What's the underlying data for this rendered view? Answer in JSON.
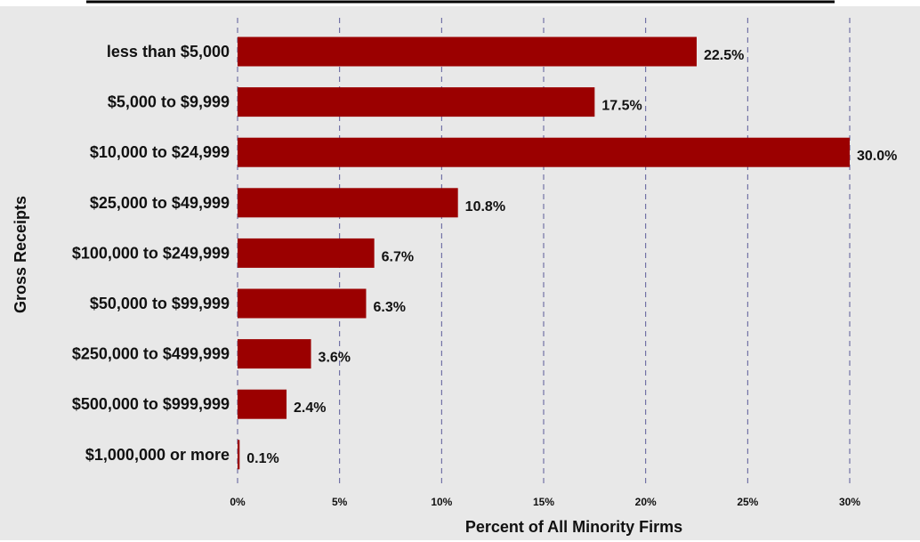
{
  "chart_data": {
    "type": "bar",
    "orientation": "horizontal",
    "title": "",
    "xlabel": "Percent of All Minority Firms",
    "ylabel": "Gross Receipts",
    "categories": [
      "less than $5,000",
      "$5,000 to $9,999",
      "$10,000 to $24,999",
      "$25,000 to $49,999",
      "$100,000 to $249,999",
      "$50,000 to $99,999",
      "$250,000 to $499,999",
      "$500,000 to $999,999",
      "$1,000,000 or more"
    ],
    "values": [
      22.5,
      17.5,
      30.0,
      10.8,
      6.7,
      6.3,
      3.6,
      2.4,
      0.1
    ],
    "value_labels": [
      "22.5%",
      "17.5%",
      "30.0%",
      "10.8%",
      "6.7%",
      "6.3%",
      "3.6%",
      "2.4%",
      "0.1%"
    ],
    "xlim": [
      0,
      30
    ],
    "xticks": [
      0,
      5,
      10,
      15,
      20,
      25,
      30
    ],
    "xtick_labels": [
      "0%",
      "5%",
      "10%",
      "15%",
      "20%",
      "25%",
      "30%"
    ],
    "grid": "vertical dashed",
    "legend": "none",
    "colors": {
      "bar": "#9b0000",
      "plot_background": "#e8e8e8",
      "grid": "#5a5a99",
      "title_rule": "#000000"
    }
  }
}
